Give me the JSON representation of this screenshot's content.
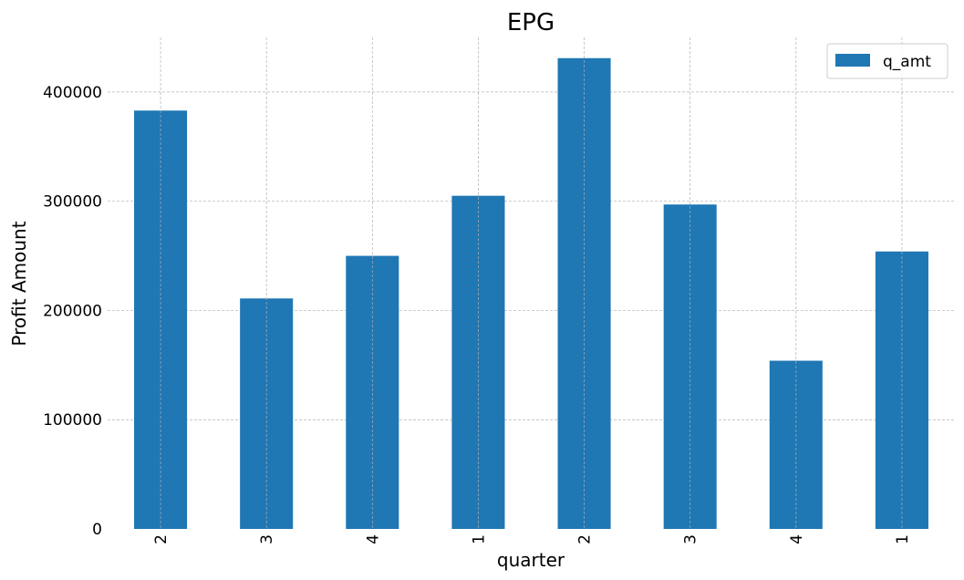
{
  "chart_data": {
    "type": "bar",
    "title": "EPG",
    "xlabel": "quarter",
    "ylabel": "Profit Amount",
    "categories": [
      "2",
      "3",
      "4",
      "1",
      "2",
      "3",
      "4",
      "1"
    ],
    "series": [
      {
        "name": "q_amt",
        "color": "#1f77b4",
        "values": [
          383000,
          211000,
          250000,
          305000,
          431000,
          297000,
          154000,
          254000
        ]
      }
    ],
    "ylim": [
      0,
      450000
    ],
    "yticks": [
      0,
      100000,
      200000,
      300000,
      400000
    ],
    "ytick_labels": [
      "0",
      "100000",
      "200000",
      "300000",
      "400000"
    ],
    "grid": true,
    "legend_position": "top-right"
  }
}
